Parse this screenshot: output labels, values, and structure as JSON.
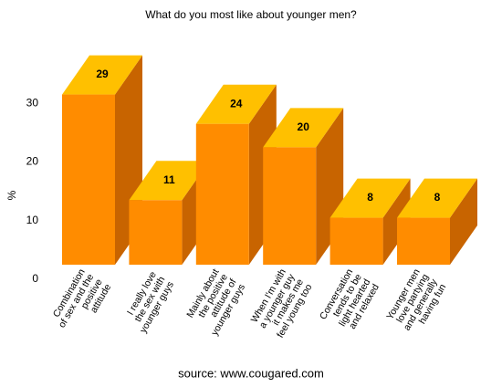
{
  "chart_data": {
    "type": "bar3d",
    "title": "What do you most like about younger men?",
    "y_label": "%",
    "categories": [
      [
        "Combination",
        "of sex and the",
        "positive",
        "attitude"
      ],
      [
        "I really love",
        "the sex with",
        "younger guys"
      ],
      [
        "Mainly about",
        "the positive",
        "attitude of",
        "younger guys"
      ],
      [
        "When I'm with",
        "a younger guy",
        "it makes me",
        "feel young too"
      ],
      [
        "Conversation",
        "tends to be",
        "light hearted",
        "and relaxed"
      ],
      [
        "Younger men",
        "love partying",
        "and generally",
        "having fun"
      ]
    ],
    "values": [
      29,
      11,
      24,
      20,
      8,
      8
    ],
    "colors": {
      "front": "#ff8c00",
      "top": "#ffc000",
      "side": "#c86400"
    },
    "ylim": [
      0,
      35
    ],
    "yticks": [
      0,
      10,
      20,
      30
    ],
    "grid": false,
    "source": "source: www.cougared.com"
  }
}
